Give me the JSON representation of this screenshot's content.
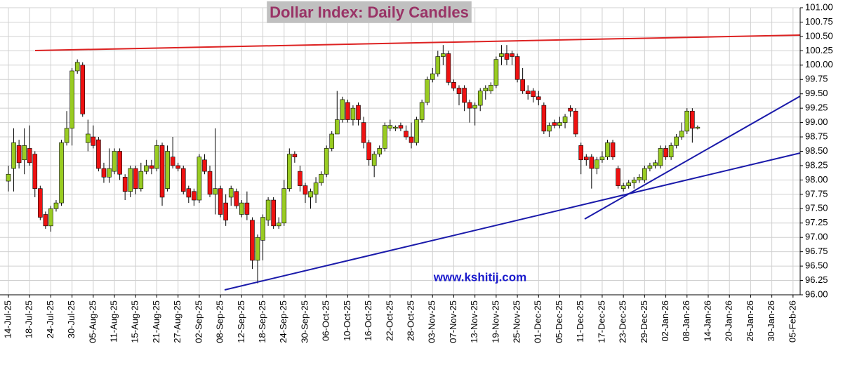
{
  "chart_data": {
    "type": "candlestick",
    "title": "Dollar Index:  Daily Candles",
    "annotation": "www.kshitij.com",
    "categories": [
      "14-Jul-25",
      null,
      null,
      null,
      "18-Jul-25",
      null,
      null,
      null,
      "24-Jul-25",
      null,
      null,
      null,
      "30-Jul-25",
      null,
      null,
      null,
      "05-Aug-25",
      null,
      null,
      null,
      "11-Aug-25",
      null,
      null,
      null,
      "15-Aug-25",
      null,
      null,
      null,
      "21-Aug-25",
      null,
      null,
      null,
      "27-Aug-25",
      null,
      null,
      null,
      "02-Sep-25",
      null,
      null,
      null,
      "08-Sep-25",
      null,
      null,
      null,
      "12-Sep-25",
      null,
      null,
      null,
      "18-Sep-25",
      null,
      null,
      null,
      "24-Sep-25",
      null,
      null,
      null,
      "30-Sep-25",
      null,
      null,
      null,
      "06-Oct-25",
      null,
      null,
      null,
      "10-Oct-25",
      null,
      null,
      null,
      "16-Oct-25",
      null,
      null,
      null,
      "22-Oct-25",
      null,
      null,
      null,
      "28-Oct-25",
      null,
      null,
      null,
      "03-Nov-25",
      null,
      null,
      null,
      "07-Nov-25",
      null,
      null,
      null,
      "13-Nov-25",
      null,
      null,
      null,
      "19-Nov-25",
      null,
      null,
      null,
      "25-Nov-25",
      null,
      null,
      null,
      "01-Dec-25",
      null,
      null,
      null,
      "05-Dec-25",
      null,
      null,
      null,
      "11-Dec-25",
      null,
      null,
      null,
      "17-Dec-25",
      null,
      null,
      null,
      "23-Dec-25",
      null,
      null,
      null,
      "29-Dec-25",
      null,
      null,
      null,
      "02-Jan-26",
      null,
      null,
      null,
      "08-Jan-26",
      null,
      null,
      null,
      "14-Jan-26",
      null,
      null,
      null,
      "20-Jan-26",
      null,
      null,
      null,
      "26-Jan-26",
      null,
      null,
      null,
      "30-Jan-26",
      null,
      null,
      null,
      "05-Feb-26"
    ],
    "ohlc": [
      [
        97.98,
        98.25,
        97.8,
        98.1
      ],
      [
        98.2,
        98.9,
        97.8,
        98.65
      ],
      [
        98.6,
        98.7,
        98.2,
        98.3
      ],
      [
        98.35,
        98.9,
        98.1,
        98.6
      ],
      [
        98.55,
        98.95,
        98.25,
        98.3
      ],
      [
        98.45,
        98.5,
        97.7,
        97.85
      ],
      [
        97.85,
        97.9,
        97.3,
        97.35
      ],
      [
        97.4,
        97.45,
        97.15,
        97.2
      ],
      [
        97.2,
        97.55,
        97.1,
        97.5
      ],
      [
        97.5,
        97.65,
        97.45,
        97.6
      ],
      [
        97.6,
        98.7,
        97.55,
        98.65
      ],
      [
        98.65,
        99.2,
        98.6,
        98.9
      ],
      [
        98.9,
        99.95,
        98.6,
        99.9
      ],
      [
        99.9,
        100.1,
        99.85,
        100.05
      ],
      [
        100.0,
        100.05,
        99.1,
        99.15
      ],
      [
        98.65,
        99.05,
        98.5,
        98.8
      ],
      [
        98.75,
        98.95,
        98.55,
        98.6
      ],
      [
        98.7,
        98.75,
        98.15,
        98.2
      ],
      [
        98.2,
        98.3,
        97.95,
        98.05
      ],
      [
        98.05,
        98.55,
        97.95,
        98.2
      ],
      [
        98.15,
        98.55,
        98.1,
        98.5
      ],
      [
        98.5,
        98.55,
        98.0,
        98.1
      ],
      [
        98.05,
        98.1,
        97.65,
        97.8
      ],
      [
        97.8,
        98.25,
        97.7,
        98.2
      ],
      [
        98.2,
        98.25,
        97.75,
        97.85
      ],
      [
        97.85,
        98.3,
        97.8,
        98.15
      ],
      [
        98.15,
        98.35,
        98.1,
        98.25
      ],
      [
        98.25,
        98.35,
        98.1,
        98.2
      ],
      [
        98.2,
        98.7,
        98.15,
        98.6
      ],
      [
        98.6,
        98.65,
        97.55,
        97.7
      ],
      [
        97.85,
        98.6,
        97.8,
        98.5
      ],
      [
        98.4,
        98.75,
        98.2,
        98.25
      ],
      [
        98.25,
        98.3,
        98.15,
        98.2
      ],
      [
        98.2,
        98.25,
        97.75,
        97.8
      ],
      [
        97.85,
        97.9,
        97.6,
        97.7
      ],
      [
        97.8,
        97.85,
        97.55,
        97.65
      ],
      [
        97.65,
        98.45,
        97.6,
        98.4
      ],
      [
        98.35,
        98.45,
        98.1,
        98.15
      ],
      [
        98.15,
        98.25,
        97.7,
        97.75
      ],
      [
        97.75,
        98.9,
        97.4,
        97.85
      ],
      [
        97.85,
        97.9,
        97.35,
        97.4
      ],
      [
        97.6,
        97.75,
        97.2,
        97.3
      ],
      [
        97.7,
        97.9,
        97.55,
        97.85
      ],
      [
        97.8,
        97.85,
        97.5,
        97.55
      ],
      [
        97.4,
        97.65,
        97.35,
        97.6
      ],
      [
        97.6,
        97.8,
        97.3,
        97.4
      ],
      [
        97.3,
        97.35,
        96.45,
        96.6
      ],
      [
        96.6,
        97.05,
        96.2,
        97.0
      ],
      [
        96.95,
        97.4,
        96.6,
        97.35
      ],
      [
        97.3,
        97.7,
        97.2,
        97.65
      ],
      [
        97.65,
        97.7,
        97.15,
        97.2
      ],
      [
        97.2,
        97.35,
        97.15,
        97.25
      ],
      [
        97.25,
        98.0,
        97.2,
        97.85
      ],
      [
        97.85,
        98.55,
        97.8,
        98.45
      ],
      [
        98.45,
        98.5,
        98.3,
        98.4
      ],
      [
        98.15,
        98.25,
        97.8,
        97.9
      ],
      [
        97.9,
        97.95,
        97.6,
        97.75
      ],
      [
        97.7,
        97.85,
        97.5,
        97.8
      ],
      [
        97.75,
        98.05,
        97.6,
        97.95
      ],
      [
        97.95,
        98.15,
        97.9,
        98.1
      ],
      [
        98.1,
        98.6,
        98.05,
        98.55
      ],
      [
        98.55,
        98.85,
        98.5,
        98.8
      ],
      [
        98.8,
        99.55,
        98.8,
        99.05
      ],
      [
        99.05,
        99.45,
        99.0,
        99.4
      ],
      [
        99.35,
        99.4,
        99.0,
        99.05
      ],
      [
        99.05,
        99.3,
        98.95,
        99.25
      ],
      [
        99.3,
        99.35,
        98.95,
        99.05
      ],
      [
        99.0,
        99.1,
        98.55,
        98.65
      ],
      [
        98.65,
        98.7,
        98.25,
        98.35
      ],
      [
        98.25,
        98.5,
        98.05,
        98.45
      ],
      [
        98.45,
        98.6,
        98.4,
        98.55
      ],
      [
        98.55,
        99.0,
        98.5,
        98.95
      ],
      [
        98.9,
        99.05,
        98.85,
        98.95
      ],
      [
        98.9,
        98.95,
        98.85,
        98.92
      ],
      [
        98.95,
        99.0,
        98.85,
        98.9
      ],
      [
        98.85,
        98.95,
        98.7,
        98.75
      ],
      [
        98.75,
        99.0,
        98.55,
        98.65
      ],
      [
        98.65,
        99.1,
        98.6,
        99.05
      ],
      [
        99.05,
        99.4,
        99.0,
        99.35
      ],
      [
        99.35,
        99.8,
        99.3,
        99.75
      ],
      [
        99.75,
        99.95,
        99.7,
        99.85
      ],
      [
        99.85,
        100.25,
        99.8,
        100.15
      ],
      [
        100.15,
        100.35,
        100.0,
        100.2
      ],
      [
        100.2,
        100.25,
        99.65,
        99.7
      ],
      [
        99.7,
        99.75,
        99.55,
        99.6
      ],
      [
        99.6,
        99.65,
        99.3,
        99.5
      ],
      [
        99.6,
        99.65,
        99.2,
        99.35
      ],
      [
        99.35,
        99.4,
        99.0,
        99.25
      ],
      [
        99.25,
        99.35,
        98.95,
        99.3
      ],
      [
        99.3,
        99.6,
        99.2,
        99.55
      ],
      [
        99.55,
        99.65,
        99.4,
        99.6
      ],
      [
        99.55,
        99.7,
        99.5,
        99.65
      ],
      [
        99.65,
        100.15,
        99.6,
        100.1
      ],
      [
        100.15,
        100.35,
        100.0,
        100.2
      ],
      [
        100.2,
        100.35,
        100.0,
        100.1
      ],
      [
        100.2,
        100.25,
        100.0,
        100.15
      ],
      [
        100.15,
        100.2,
        99.7,
        99.75
      ],
      [
        99.75,
        99.95,
        99.5,
        99.55
      ],
      [
        99.55,
        99.65,
        99.4,
        99.5
      ],
      [
        99.55,
        99.6,
        99.35,
        99.45
      ],
      [
        99.45,
        99.55,
        99.3,
        99.4
      ],
      [
        99.3,
        99.35,
        98.8,
        98.85
      ],
      [
        98.85,
        99.0,
        98.75,
        98.95
      ],
      [
        99.0,
        99.05,
        98.9,
        98.95
      ],
      [
        98.95,
        99.1,
        98.9,
        99.0
      ],
      [
        99.0,
        99.15,
        98.9,
        99.1
      ],
      [
        99.25,
        99.3,
        99.1,
        99.2
      ],
      [
        99.2,
        99.25,
        98.75,
        98.8
      ],
      [
        98.6,
        98.65,
        98.1,
        98.35
      ],
      [
        98.4,
        98.45,
        98.25,
        98.35
      ],
      [
        98.4,
        98.45,
        97.85,
        98.2
      ],
      [
        98.2,
        98.4,
        98.1,
        98.35
      ],
      [
        98.35,
        98.5,
        98.3,
        98.4
      ],
      [
        98.4,
        98.7,
        98.35,
        98.65
      ],
      [
        98.65,
        98.7,
        98.35,
        98.4
      ],
      [
        98.2,
        98.25,
        97.85,
        97.9
      ],
      [
        97.85,
        97.95,
        97.8,
        97.9
      ],
      [
        97.9,
        98.0,
        97.85,
        97.95
      ],
      [
        97.95,
        98.05,
        97.85,
        98.0
      ],
      [
        98.0,
        98.1,
        97.95,
        98.05
      ],
      [
        98.0,
        98.25,
        97.95,
        98.2
      ],
      [
        98.2,
        98.3,
        98.15,
        98.25
      ],
      [
        98.25,
        98.35,
        98.2,
        98.3
      ],
      [
        98.25,
        98.6,
        98.2,
        98.55
      ],
      [
        98.55,
        98.6,
        98.35,
        98.4
      ],
      [
        98.4,
        98.65,
        98.35,
        98.6
      ],
      [
        98.6,
        98.8,
        98.55,
        98.75
      ],
      [
        98.75,
        99.0,
        98.7,
        98.85
      ],
      [
        98.85,
        99.25,
        98.8,
        99.2
      ],
      [
        99.2,
        99.25,
        98.65,
        98.9
      ],
      [
        98.9,
        98.95,
        98.88,
        98.92
      ],
      null,
      null,
      null,
      null,
      null,
      null,
      null,
      null,
      null,
      null,
      null,
      null,
      null,
      null,
      null,
      null,
      null,
      null
    ],
    "up_color": "#99cc22",
    "down_color": "#ee1111",
    "ylim": [
      96,
      101
    ],
    "yticks": [
      {
        "value": 96,
        "label": "96.00"
      },
      {
        "value": 96.25,
        "label": "96.25"
      },
      {
        "value": 96.5,
        "label": "96.50"
      },
      {
        "value": 96.75,
        "label": "96.75"
      },
      {
        "value": 97,
        "label": "97.00"
      },
      {
        "value": 97.25,
        "label": "97.25"
      },
      {
        "value": 97.5,
        "label": "97.50"
      },
      {
        "value": 97.75,
        "label": "97.75"
      },
      {
        "value": 98,
        "label": "98.00"
      },
      {
        "value": 98.25,
        "label": "98.25"
      },
      {
        "value": 98.5,
        "label": "98.50"
      },
      {
        "value": 98.75,
        "label": "98.75"
      },
      {
        "value": 99,
        "label": "99.00"
      },
      {
        "value": 99.25,
        "label": "99.25"
      },
      {
        "value": 99.5,
        "label": "99.50"
      },
      {
        "value": 99.75,
        "label": "99.75"
      },
      {
        "value": 100,
        "label": "100.00"
      },
      {
        "value": 100.25,
        "label": "100.25"
      },
      {
        "value": 100.5,
        "label": "100.50"
      },
      {
        "value": 100.75,
        "label": "100.75"
      },
      {
        "value": 101,
        "label": "101.00"
      }
    ],
    "grid": true
  }
}
